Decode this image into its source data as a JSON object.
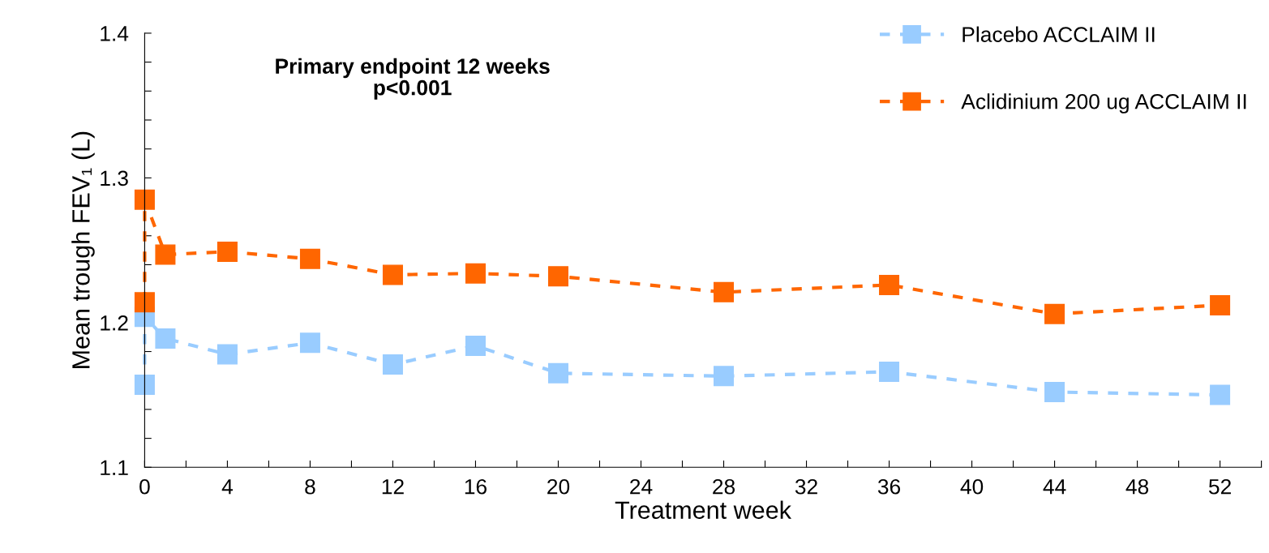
{
  "chart_data": {
    "type": "line",
    "xlabel": "Treatment week",
    "ylabel": "Mean trough FEV₁ (L)",
    "annotations": [
      "Primary endpoint 12 weeks\np<0.001"
    ],
    "x": [
      0,
      0,
      1,
      4,
      8,
      12,
      16,
      20,
      28,
      36,
      44,
      52
    ],
    "series": [
      {
        "name": "Placebo ACCLAIM II",
        "color": "#99ccff",
        "values": [
          1.157,
          1.204,
          1.189,
          1.178,
          1.186,
          1.171,
          1.184,
          1.165,
          1.163,
          1.166,
          1.152,
          1.15
        ]
      },
      {
        "name": "Aclidinium 200 ug ACCLAIM II",
        "color": "#ff6600",
        "values": [
          1.214,
          1.285,
          1.247,
          1.249,
          1.244,
          1.233,
          1.234,
          1.232,
          1.221,
          1.226,
          1.206,
          1.212
        ]
      }
    ],
    "xlim": [
      0,
      54
    ],
    "xticks": [
      0,
      {
        "value": 2,
        "label": null
      },
      4,
      {
        "value": 6,
        "label": null
      },
      8,
      {
        "value": 10,
        "label": null
      },
      12,
      {
        "value": 14,
        "label": null
      },
      16,
      {
        "value": 18,
        "label": null
      },
      20,
      {
        "value": 22,
        "label": null
      },
      24,
      {
        "value": 26,
        "label": null
      },
      28,
      {
        "value": 30,
        "label": null
      },
      32,
      {
        "value": 34,
        "label": null
      },
      36,
      {
        "value": 38,
        "label": null
      },
      40,
      {
        "value": 42,
        "label": null
      },
      44,
      {
        "value": 46,
        "label": null
      },
      48,
      {
        "value": 50,
        "label": null
      },
      52,
      {
        "value": 54,
        "label": null
      }
    ],
    "ylim": [
      1.1,
      1.4
    ],
    "yticks": [
      1.1,
      {
        "value": 1.12,
        "label": null
      },
      {
        "value": 1.14,
        "label": null
      },
      {
        "value": 1.16,
        "label": null
      },
      {
        "value": 1.18,
        "label": null
      },
      1.2,
      {
        "value": 1.22,
        "label": null
      },
      {
        "value": 1.24,
        "label": null
      },
      {
        "value": 1.26,
        "label": null
      },
      {
        "value": 1.28,
        "label": null
      },
      1.3,
      {
        "value": 1.32,
        "label": null
      },
      {
        "value": 1.34,
        "label": null
      },
      {
        "value": 1.36,
        "label": null
      },
      {
        "value": 1.38,
        "label": null
      },
      1.4
    ],
    "grid": false,
    "legend": "top right",
    "marker": "square",
    "line_style": "dashed"
  }
}
